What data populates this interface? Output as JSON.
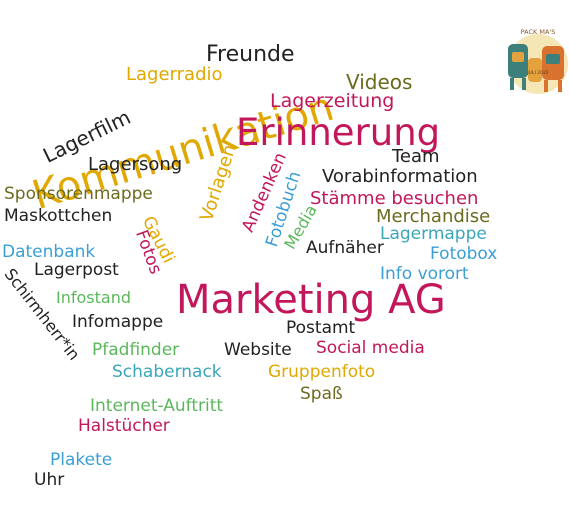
{
  "colors": {
    "teal": "#3aa6b9",
    "magenta": "#c2185b",
    "olive": "#6b6b1f",
    "yellow": "#e0a800",
    "dark": "#222222",
    "blue": "#3b9fd6",
    "green": "#5cb85c",
    "purple": "#8e44ad",
    "red": "#e53935"
  },
  "logo": {
    "line1": "PACK MA'S",
    "year_label": "JULI 2022",
    "icon": "backpack-icon"
  },
  "words": [
    {
      "text": "Freunde",
      "color": "#222222"
    },
    {
      "text": "Lagerradio",
      "color": "#e0a800"
    },
    {
      "text": "Kommunikation",
      "color": "#e0a800"
    },
    {
      "text": "Videos",
      "color": "#6b6b1f"
    },
    {
      "text": "Lagerzeitung",
      "color": "#c2185b"
    },
    {
      "text": "Lagerfilm",
      "color": "#222222"
    },
    {
      "text": "Erinnerung",
      "color": "#c2185b"
    },
    {
      "text": "Team",
      "color": "#222222"
    },
    {
      "text": "Lagersong",
      "color": "#222222"
    },
    {
      "text": "Vorlagen",
      "color": "#e0a800"
    },
    {
      "text": "Andenken",
      "color": "#c2185b"
    },
    {
      "text": "Fotobuch",
      "color": "#3b9fd6"
    },
    {
      "text": "Vorabinformation",
      "color": "#222222"
    },
    {
      "text": "Sponsorenmappe",
      "color": "#6b6b1f"
    },
    {
      "text": "Stämme besuchen",
      "color": "#c2185b"
    },
    {
      "text": "Maskottchen",
      "color": "#222222"
    },
    {
      "text": "Gaudi",
      "color": "#e0a800"
    },
    {
      "text": "Media",
      "color": "#5cb85c"
    },
    {
      "text": "Merchandise",
      "color": "#6b6b1f"
    },
    {
      "text": "Lagermappe",
      "color": "#3aa6b9"
    },
    {
      "text": "Datenbank",
      "color": "#3b9fd6"
    },
    {
      "text": "Fotos",
      "color": "#c2185b"
    },
    {
      "text": "Aufnäher",
      "color": "#222222"
    },
    {
      "text": "Fotobox",
      "color": "#3b9fd6"
    },
    {
      "text": "Lagerpost",
      "color": "#222222"
    },
    {
      "text": "Info vorort",
      "color": "#3b9fd6"
    },
    {
      "text": "Schirmherr*in",
      "color": "#222222"
    },
    {
      "text": "Infostand",
      "color": "#5cb85c"
    },
    {
      "text": "Marketing AG",
      "color": "#c2185b"
    },
    {
      "text": "Infomappe",
      "color": "#222222"
    },
    {
      "text": "Postamt",
      "color": "#222222"
    },
    {
      "text": "Pfadfinder",
      "color": "#5cb85c"
    },
    {
      "text": "Website",
      "color": "#222222"
    },
    {
      "text": "Social media",
      "color": "#c2185b"
    },
    {
      "text": "Schabernack",
      "color": "#3aa6b9"
    },
    {
      "text": "Gruppenfoto",
      "color": "#e0a800"
    },
    {
      "text": "Spaß",
      "color": "#6b6b1f"
    },
    {
      "text": "Internet-Auftritt",
      "color": "#5cb85c"
    },
    {
      "text": "Halstücher",
      "color": "#c2185b"
    },
    {
      "text": "Plakete",
      "color": "#3b9fd6"
    },
    {
      "text": "Uhr",
      "color": "#222222"
    }
  ]
}
